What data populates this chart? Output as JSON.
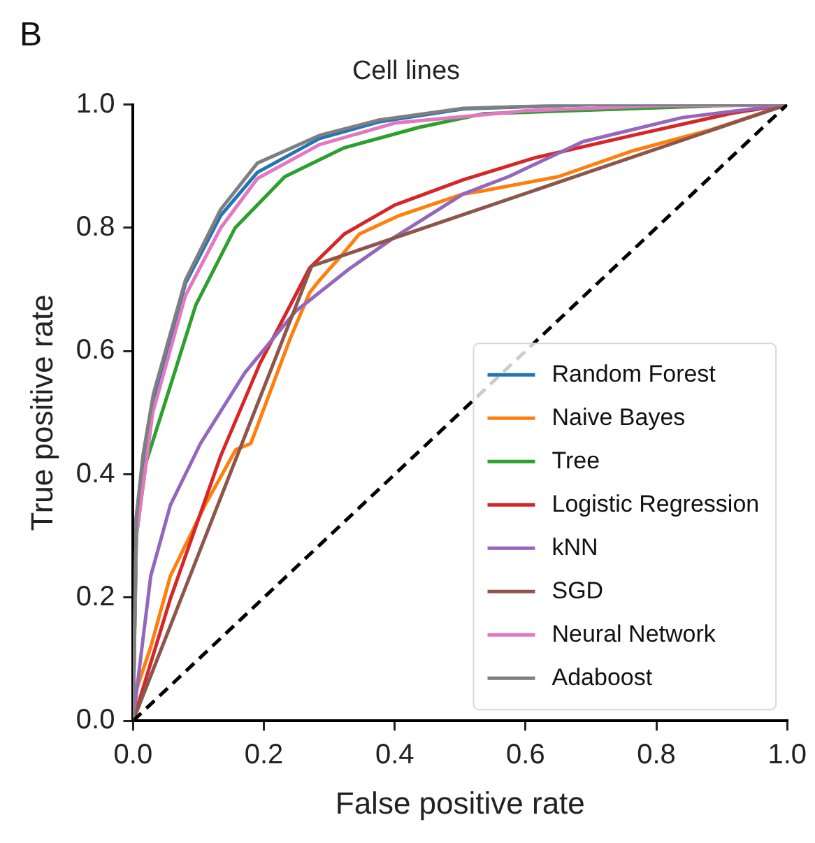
{
  "chart_data": {
    "type": "line",
    "title": "Cell lines",
    "xlabel": "False positive rate",
    "ylabel": "True positive rate",
    "annotations": [
      "B"
    ],
    "xlim": [
      0,
      1
    ],
    "ylim": [
      0,
      1
    ],
    "xticks": [
      {
        "value": 0,
        "label": "0.0"
      },
      0.2,
      0.4,
      0.6,
      0.8,
      {
        "value": 1,
        "label": "1.0"
      }
    ],
    "yticks": [
      {
        "value": 0,
        "label": "0.0"
      },
      0.2,
      0.4,
      0.6,
      0.8,
      {
        "value": 1,
        "label": "1.0"
      }
    ],
    "grid": false,
    "legend": "bottom right",
    "marker": "none",
    "series": [
      {
        "name": "Random Forest",
        "color": "#1f77b4",
        "x": [
          0,
          0.005,
          0.015,
          0.031,
          0.08,
          0.134,
          0.19,
          0.285,
          0.376,
          0.505,
          0.7,
          1
        ],
        "values": [
          0,
          0.33,
          0.42,
          0.52,
          0.71,
          0.82,
          0.89,
          0.945,
          0.972,
          0.993,
          1,
          1
        ]
      },
      {
        "name": "Naive Bayes",
        "color": "#ff7f0e",
        "x": [
          0,
          0.005,
          0.027,
          0.057,
          0.11,
          0.157,
          0.18,
          0.21,
          0.24,
          0.27,
          0.285,
          0.316,
          0.346,
          0.407,
          0.505,
          0.535,
          0.65,
          0.764,
          0.886,
          1
        ],
        "values": [
          0,
          0.05,
          0.12,
          0.235,
          0.35,
          0.44,
          0.45,
          0.535,
          0.62,
          0.695,
          0.715,
          0.752,
          0.79,
          0.82,
          0.855,
          0.86,
          0.883,
          0.925,
          0.96,
          1
        ]
      },
      {
        "name": "Tree",
        "color": "#2ca02c",
        "x": [
          0,
          0.005,
          0.02,
          0.05,
          0.096,
          0.156,
          0.232,
          0.323,
          0.437,
          0.535,
          0.886,
          1
        ],
        "values": [
          0,
          0.3,
          0.42,
          0.52,
          0.675,
          0.8,
          0.883,
          0.93,
          0.963,
          0.985,
          0.998,
          1
        ]
      },
      {
        "name": "Logistic Regression",
        "color": "#d62728",
        "x": [
          0,
          0.057,
          0.134,
          0.194,
          0.27,
          0.323,
          0.4,
          0.505,
          0.612,
          0.764,
          0.915,
          1
        ],
        "values": [
          0,
          0.198,
          0.43,
          0.58,
          0.735,
          0.79,
          0.837,
          0.878,
          0.913,
          0.95,
          0.986,
          1
        ]
      },
      {
        "name": "kNN",
        "color": "#9467bd",
        "x": [
          0,
          0.005,
          0.027,
          0.057,
          0.103,
          0.171,
          0.248,
          0.33,
          0.4,
          0.505,
          0.574,
          0.688,
          0.84,
          1
        ],
        "values": [
          0,
          0.045,
          0.235,
          0.35,
          0.45,
          0.565,
          0.664,
          0.733,
          0.785,
          0.855,
          0.883,
          0.94,
          0.979,
          1
        ]
      },
      {
        "name": "SGD",
        "color": "#8c564b",
        "x": [
          0,
          0.273,
          1
        ],
        "values": [
          0,
          0.738,
          1
        ]
      },
      {
        "name": "Neural Network",
        "color": "#e377c2",
        "x": [
          0,
          0.005,
          0.03,
          0.08,
          0.134,
          0.19,
          0.285,
          0.4,
          0.6,
          0.8,
          1
        ],
        "values": [
          0,
          0.3,
          0.5,
          0.69,
          0.8,
          0.88,
          0.935,
          0.97,
          0.99,
          0.998,
          1
        ]
      },
      {
        "name": "Adaboost",
        "color": "#7f7f7f",
        "x": [
          0,
          0.005,
          0.015,
          0.031,
          0.08,
          0.134,
          0.19,
          0.285,
          0.376,
          0.505,
          0.7,
          1
        ],
        "values": [
          0,
          0.33,
          0.43,
          0.53,
          0.715,
          0.83,
          0.905,
          0.95,
          0.975,
          0.994,
          1,
          1
        ]
      },
      {
        "color": "#000000",
        "line_style": "dashed",
        "x": [
          0,
          1
        ],
        "values": [
          0,
          1
        ]
      }
    ]
  }
}
